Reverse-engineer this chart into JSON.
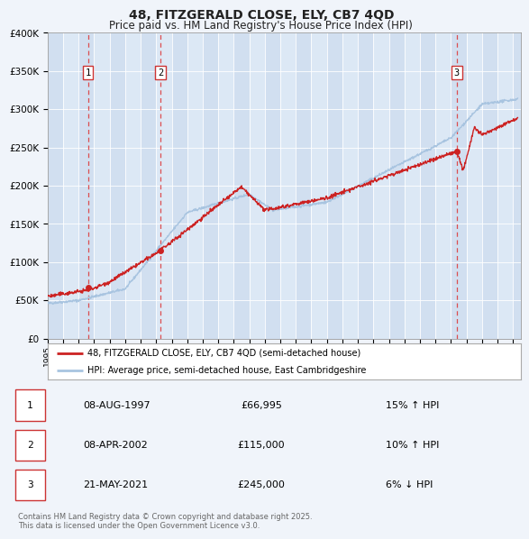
{
  "title": "48, FITZGERALD CLOSE, ELY, CB7 4QD",
  "subtitle": "Price paid vs. HM Land Registry's House Price Index (HPI)",
  "title_fontsize": 10,
  "subtitle_fontsize": 8.5,
  "background_color": "#f0f4fa",
  "plot_bg_color": "#dce8f5",
  "col_stripe_color": "#c8d8ec",
  "hpi_line_color": "#a8c4e0",
  "price_line_color": "#cc2222",
  "ylim": [
    0,
    400000
  ],
  "yticks": [
    0,
    50000,
    100000,
    150000,
    200000,
    250000,
    300000,
    350000,
    400000
  ],
  "ytick_labels": [
    "£0",
    "£50K",
    "£100K",
    "£150K",
    "£200K",
    "£250K",
    "£300K",
    "£350K",
    "£400K"
  ],
  "xlim_start": 1995.0,
  "xlim_end": 2025.5,
  "sale_dates": [
    1997.6,
    2002.27,
    2021.38
  ],
  "sale_prices": [
    66995,
    115000,
    245000
  ],
  "sale_labels": [
    "1",
    "2",
    "3"
  ],
  "vline_color": "#dd3333",
  "sale_marker_color": "#cc2222",
  "legend_entries": [
    "48, FITZGERALD CLOSE, ELY, CB7 4QD (semi-detached house)",
    "HPI: Average price, semi-detached house, East Cambridgeshire"
  ],
  "table_rows": [
    [
      "1",
      "08-AUG-1997",
      "£66,995",
      "15% ↑ HPI"
    ],
    [
      "2",
      "08-APR-2002",
      "£115,000",
      "10% ↑ HPI"
    ],
    [
      "3",
      "21-MAY-2021",
      "£245,000",
      "6% ↓ HPI"
    ]
  ],
  "footer_text": "Contains HM Land Registry data © Crown copyright and database right 2025.\nThis data is licensed under the Open Government Licence v3.0.",
  "grid_color": "#ffffff",
  "label_box_color": "#ffffff",
  "label_box_edge": "#cc3333"
}
